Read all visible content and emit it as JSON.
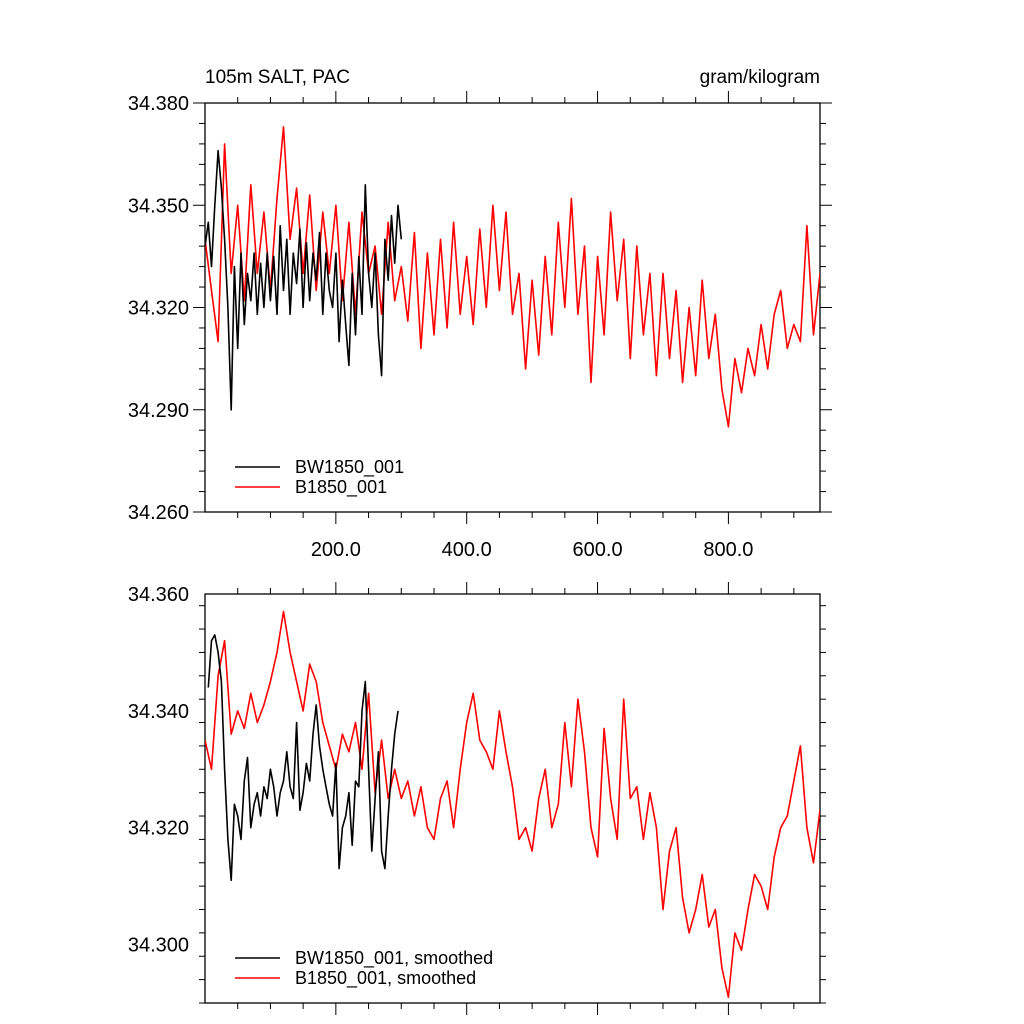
{
  "chart_data": [
    {
      "type": "line",
      "title_left": "105m SALT, PAC",
      "title_right": "gram/kilogram",
      "xlim": [
        0,
        940
      ],
      "ylim": [
        34.26,
        34.38
      ],
      "yticks": [
        34.26,
        34.29,
        34.32,
        34.35,
        34.38
      ],
      "ytick_labels": [
        "34.260",
        "34.290",
        "34.320",
        "34.350",
        "34.380"
      ],
      "xticks": [
        200,
        400,
        600,
        800
      ],
      "xtick_labels": [
        "200.0",
        "400.0",
        "600.0",
        "800.0"
      ],
      "legend_position": "bottom-left",
      "series": [
        {
          "name": "BW1850_001",
          "color": "#000000",
          "x": [
            0,
            5,
            10,
            15,
            20,
            25,
            30,
            35,
            40,
            45,
            50,
            55,
            60,
            65,
            70,
            75,
            80,
            85,
            90,
            95,
            100,
            105,
            110,
            115,
            120,
            125,
            130,
            135,
            140,
            145,
            150,
            155,
            160,
            165,
            170,
            175,
            180,
            185,
            190,
            195,
            200,
            205,
            210,
            215,
            220,
            225,
            230,
            235,
            240,
            245,
            250,
            255,
            260,
            265,
            270,
            275,
            280,
            285,
            290,
            295,
            300
          ],
          "values": [
            34.338,
            34.345,
            34.332,
            34.35,
            34.366,
            34.355,
            34.34,
            34.32,
            34.29,
            34.332,
            34.308,
            34.336,
            34.315,
            34.33,
            34.322,
            34.336,
            34.318,
            34.333,
            34.32,
            34.336,
            34.322,
            34.335,
            34.318,
            34.344,
            34.325,
            34.34,
            34.318,
            34.336,
            34.327,
            34.343,
            34.32,
            34.339,
            34.322,
            34.336,
            34.328,
            34.342,
            34.318,
            34.336,
            34.325,
            34.32,
            34.336,
            34.31,
            34.328,
            34.315,
            34.303,
            34.33,
            34.312,
            34.335,
            34.318,
            34.356,
            34.33,
            34.32,
            34.336,
            34.312,
            34.3,
            34.34,
            34.328,
            34.347,
            34.333,
            34.35,
            34.34
          ]
        },
        {
          "name": "B1850_001",
          "color": "#ff0000",
          "x": [
            0,
            10,
            20,
            30,
            40,
            50,
            60,
            70,
            80,
            90,
            100,
            110,
            120,
            130,
            140,
            150,
            160,
            170,
            180,
            190,
            200,
            210,
            220,
            230,
            240,
            250,
            260,
            270,
            280,
            290,
            300,
            310,
            320,
            330,
            340,
            350,
            360,
            370,
            380,
            390,
            400,
            410,
            420,
            430,
            440,
            450,
            460,
            470,
            480,
            490,
            500,
            510,
            520,
            530,
            540,
            550,
            560,
            570,
            580,
            590,
            600,
            610,
            620,
            630,
            640,
            650,
            660,
            670,
            680,
            690,
            700,
            710,
            720,
            730,
            740,
            750,
            760,
            770,
            780,
            790,
            800,
            810,
            820,
            830,
            840,
            850,
            860,
            870,
            880,
            890,
            900,
            910,
            920,
            930,
            940
          ],
          "values": [
            34.34,
            34.325,
            34.31,
            34.368,
            34.33,
            34.35,
            34.322,
            34.356,
            34.33,
            34.348,
            34.325,
            34.352,
            34.373,
            34.34,
            34.355,
            34.33,
            34.353,
            34.325,
            34.348,
            34.33,
            34.35,
            34.322,
            34.345,
            34.318,
            34.348,
            34.33,
            34.338,
            34.318,
            34.345,
            34.322,
            34.332,
            34.316,
            34.342,
            34.308,
            34.336,
            34.312,
            34.34,
            34.314,
            34.345,
            34.318,
            34.335,
            34.315,
            34.343,
            34.32,
            34.35,
            34.325,
            34.348,
            34.318,
            34.33,
            34.302,
            34.328,
            34.306,
            34.335,
            34.312,
            34.345,
            34.32,
            34.352,
            34.318,
            34.338,
            34.298,
            34.335,
            34.312,
            34.348,
            34.322,
            34.34,
            34.305,
            34.338,
            34.312,
            34.33,
            34.3,
            34.33,
            34.305,
            34.325,
            34.298,
            34.32,
            34.3,
            34.328,
            34.305,
            34.318,
            34.296,
            34.285,
            34.305,
            34.295,
            34.308,
            34.3,
            34.315,
            34.302,
            34.318,
            34.325,
            34.308,
            34.315,
            34.31,
            34.344,
            34.312,
            34.33
          ]
        }
      ]
    },
    {
      "type": "line",
      "xlim": [
        0,
        940
      ],
      "ylim": [
        34.29,
        34.36
      ],
      "yticks": [
        34.3,
        34.32,
        34.34,
        34.36
      ],
      "ytick_labels": [
        "34.300",
        "34.320",
        "34.340",
        "34.360"
      ],
      "legend_position": "bottom-left",
      "series": [
        {
          "name": "BW1850_001, smoothed",
          "color": "#000000",
          "x": [
            5,
            10,
            15,
            20,
            25,
            30,
            35,
            40,
            45,
            50,
            55,
            60,
            65,
            70,
            75,
            80,
            85,
            90,
            95,
            100,
            105,
            110,
            115,
            120,
            125,
            130,
            135,
            140,
            145,
            150,
            155,
            160,
            165,
            170,
            175,
            180,
            185,
            190,
            195,
            200,
            205,
            210,
            215,
            220,
            225,
            230,
            235,
            240,
            245,
            250,
            255,
            260,
            265,
            270,
            275,
            280,
            285,
            290,
            295
          ],
          "values": [
            34.344,
            34.352,
            34.353,
            34.35,
            34.345,
            34.33,
            34.318,
            34.311,
            34.324,
            34.322,
            34.318,
            34.328,
            34.332,
            34.32,
            34.324,
            34.326,
            34.322,
            34.327,
            34.325,
            34.33,
            34.327,
            34.322,
            34.326,
            34.328,
            34.333,
            34.327,
            34.325,
            34.338,
            34.323,
            34.326,
            34.331,
            34.328,
            34.336,
            34.341,
            34.334,
            34.33,
            34.327,
            34.324,
            34.322,
            34.331,
            34.313,
            34.32,
            34.322,
            34.326,
            34.317,
            34.328,
            34.327,
            34.34,
            34.345,
            34.33,
            34.316,
            34.325,
            34.333,
            34.316,
            34.313,
            34.322,
            34.33,
            34.336,
            34.34
          ]
        },
        {
          "name": "B1850_001, smoothed",
          "color": "#ff0000",
          "x": [
            0,
            10,
            20,
            30,
            40,
            50,
            60,
            70,
            80,
            90,
            100,
            110,
            120,
            130,
            140,
            150,
            160,
            170,
            180,
            190,
            200,
            210,
            220,
            230,
            240,
            250,
            260,
            270,
            280,
            290,
            300,
            310,
            320,
            330,
            340,
            350,
            360,
            370,
            380,
            390,
            400,
            410,
            420,
            430,
            440,
            450,
            460,
            470,
            480,
            490,
            500,
            510,
            520,
            530,
            540,
            550,
            560,
            570,
            580,
            590,
            600,
            610,
            620,
            630,
            640,
            650,
            660,
            670,
            680,
            690,
            700,
            710,
            720,
            730,
            740,
            750,
            760,
            770,
            780,
            790,
            800,
            810,
            820,
            830,
            840,
            850,
            860,
            870,
            880,
            890,
            900,
            910,
            920,
            930,
            940
          ],
          "values": [
            34.335,
            34.33,
            34.346,
            34.352,
            34.336,
            34.34,
            34.337,
            34.343,
            34.338,
            34.341,
            34.345,
            34.35,
            34.357,
            34.35,
            34.345,
            34.34,
            34.348,
            34.345,
            34.338,
            34.334,
            34.33,
            34.336,
            34.333,
            34.338,
            34.33,
            34.343,
            34.326,
            34.335,
            34.325,
            34.33,
            34.325,
            34.328,
            34.322,
            34.327,
            34.32,
            34.318,
            34.325,
            34.328,
            34.32,
            34.33,
            34.338,
            34.343,
            34.335,
            34.333,
            34.33,
            34.34,
            34.333,
            34.327,
            34.318,
            34.32,
            34.316,
            34.325,
            34.33,
            34.32,
            34.324,
            34.338,
            34.327,
            34.342,
            34.333,
            34.32,
            34.315,
            34.337,
            34.325,
            34.318,
            34.342,
            34.325,
            34.327,
            34.318,
            34.326,
            34.32,
            34.306,
            34.316,
            34.32,
            34.308,
            34.302,
            34.306,
            34.312,
            34.303,
            34.306,
            34.296,
            34.291,
            34.302,
            34.299,
            34.306,
            34.312,
            34.31,
            34.306,
            34.315,
            34.32,
            34.322,
            34.328,
            34.334,
            34.32,
            34.314,
            34.323
          ]
        }
      ]
    }
  ]
}
